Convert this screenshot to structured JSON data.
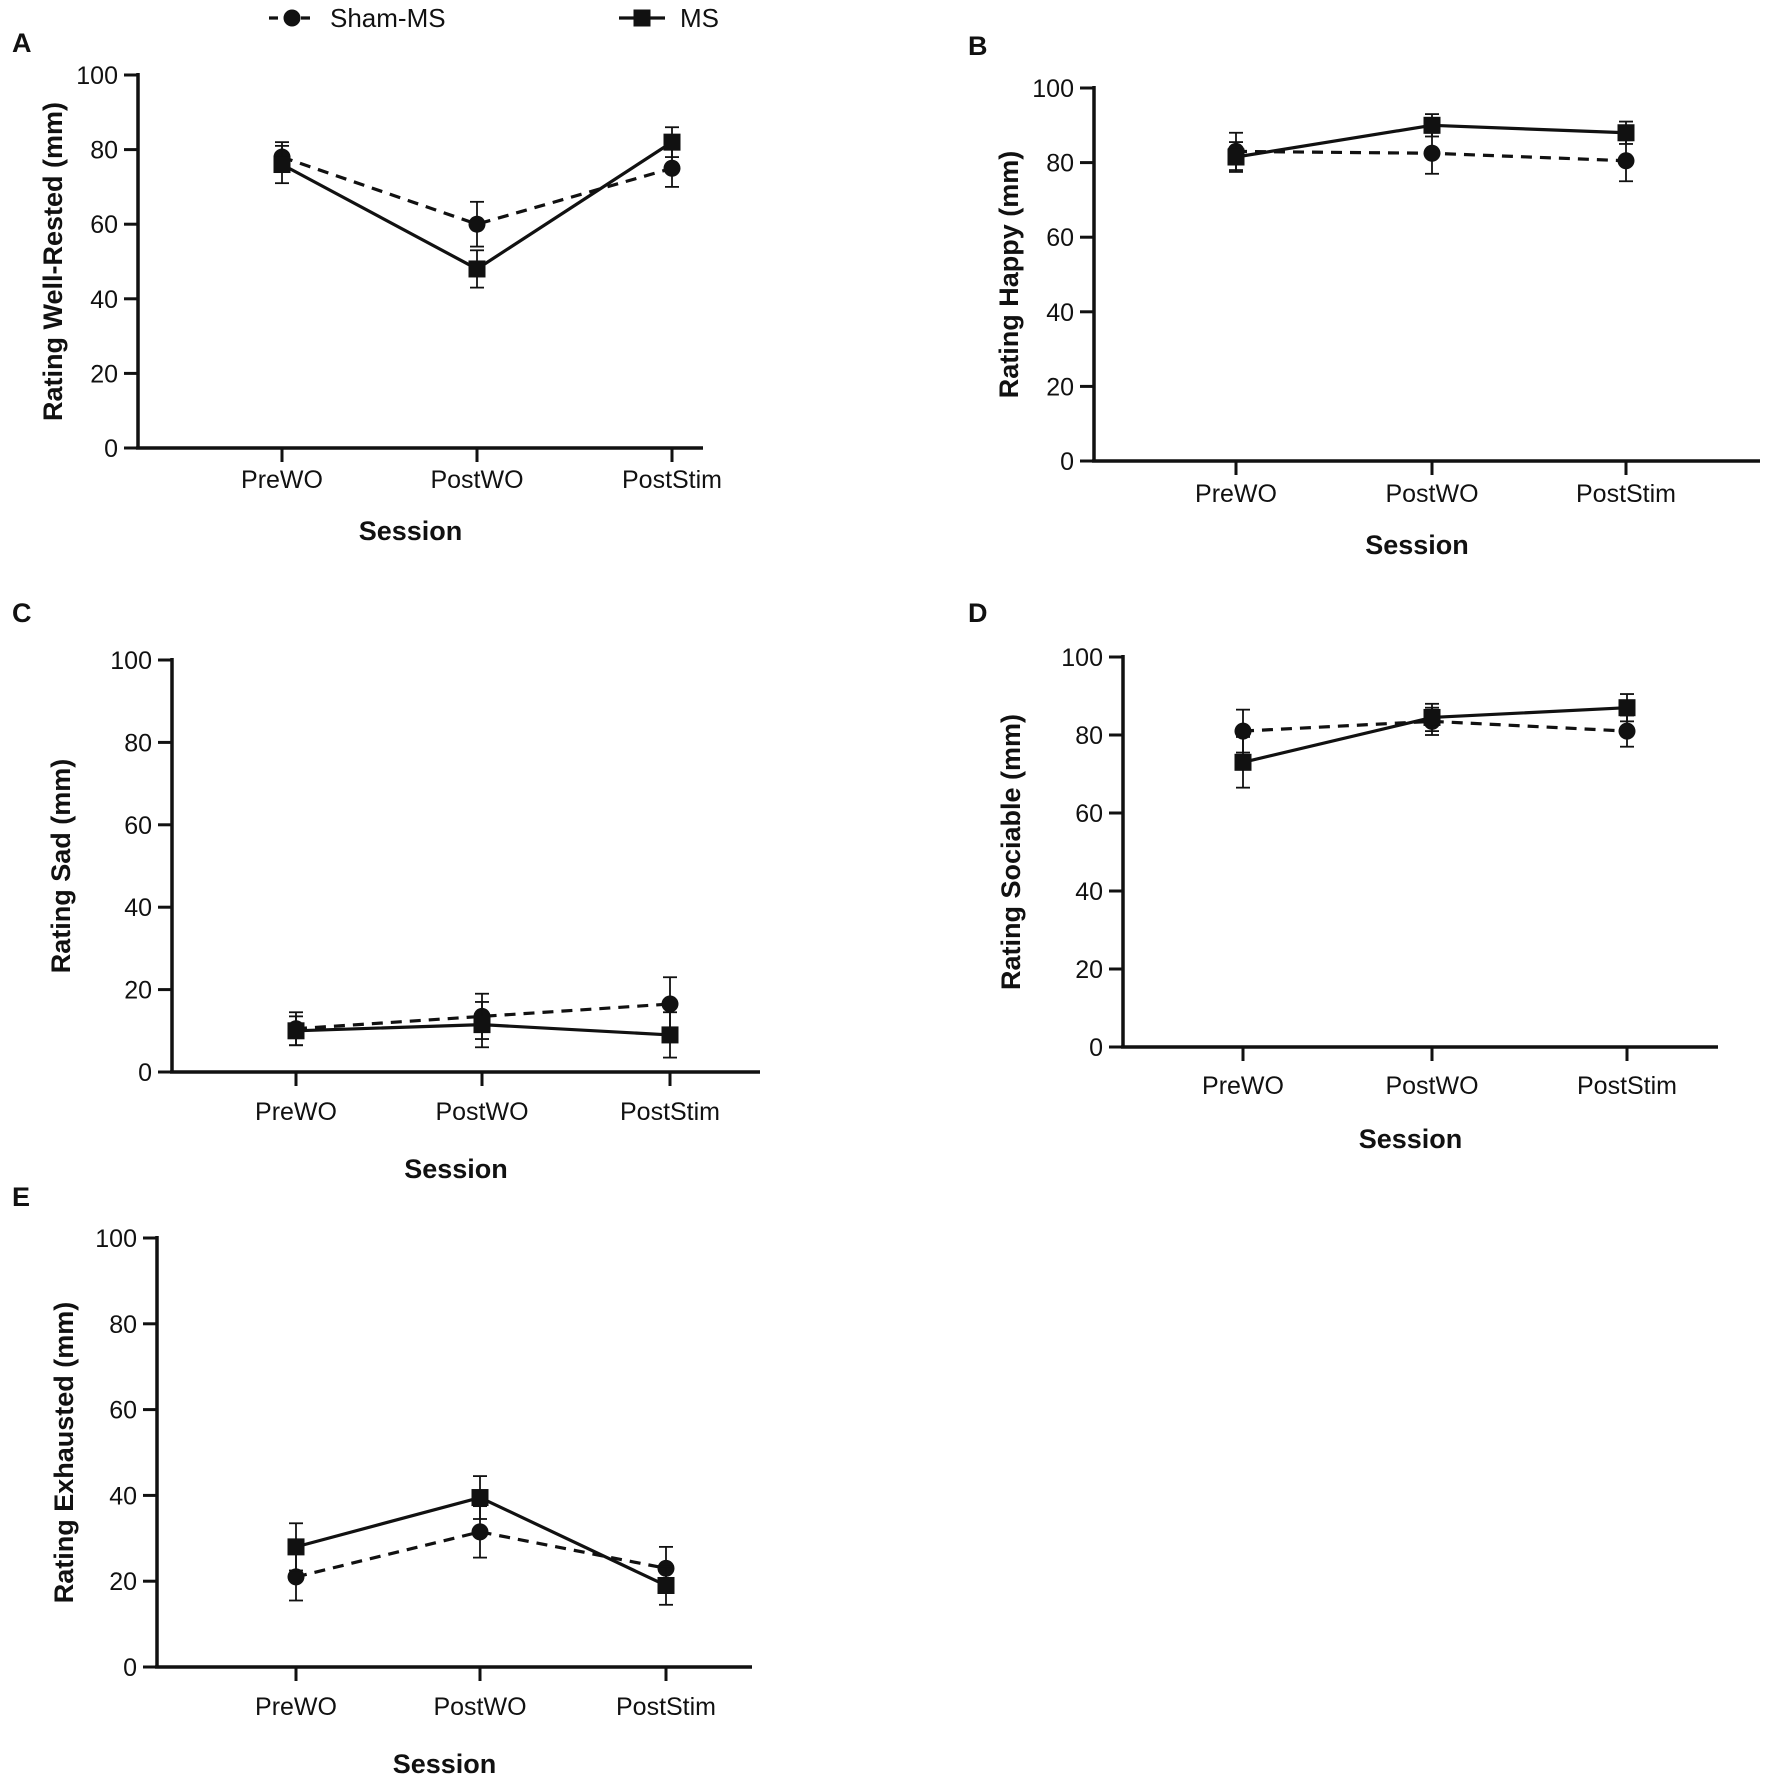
{
  "legend": [
    {
      "label": "Sham-MS",
      "marker": "circle",
      "line": "dashed"
    },
    {
      "label": "MS",
      "marker": "square",
      "line": "solid"
    }
  ],
  "colors": {
    "ink": "#111111",
    "background": "#ffffff"
  },
  "chart_data": [
    {
      "panel": "A",
      "type": "line",
      "categories": [
        "PreWO",
        "PostWO",
        "PostStim"
      ],
      "xlabel": "Session",
      "ylabel": "Rating Well-Rested (mm)",
      "ylim": [
        0,
        100
      ],
      "yticks": [
        0,
        20,
        40,
        60,
        80,
        100
      ],
      "series": [
        {
          "name": "Sham-MS",
          "values": [
            78,
            60,
            75
          ],
          "errors": [
            4,
            6,
            5
          ]
        },
        {
          "name": "MS",
          "values": [
            76,
            48,
            82
          ],
          "errors": [
            5,
            5,
            4
          ]
        }
      ]
    },
    {
      "panel": "B",
      "type": "line",
      "categories": [
        "PreWO",
        "PostWO",
        "PostStim"
      ],
      "xlabel": "Session",
      "ylabel": "Rating Happy (mm)",
      "ylim": [
        0,
        100
      ],
      "yticks": [
        0,
        20,
        40,
        60,
        80,
        100
      ],
      "series": [
        {
          "name": "Sham-MS",
          "values": [
            83,
            82.5,
            80.5
          ],
          "errors": [
            5,
            5.5,
            5.5
          ]
        },
        {
          "name": "MS",
          "values": [
            81.5,
            90,
            88
          ],
          "errors": [
            4,
            3,
            3
          ]
        }
      ]
    },
    {
      "panel": "C",
      "type": "line",
      "categories": [
        "PreWO",
        "PostWO",
        "PostStim"
      ],
      "xlabel": "Session",
      "ylabel": "Rating Sad (mm)",
      "ylim": [
        0,
        100
      ],
      "yticks": [
        0,
        20,
        40,
        60,
        80,
        100
      ],
      "series": [
        {
          "name": "Sham-MS",
          "values": [
            10.5,
            13.5,
            16.5
          ],
          "errors": [
            4,
            5.5,
            6.5
          ]
        },
        {
          "name": "MS",
          "values": [
            10,
            11.5,
            9
          ],
          "errors": [
            3.5,
            5.5,
            5.5
          ]
        }
      ]
    },
    {
      "panel": "D",
      "type": "line",
      "categories": [
        "PreWO",
        "PostWO",
        "PostStim"
      ],
      "xlabel": "Session",
      "ylabel": "Rating Sociable (mm)",
      "ylim": [
        0,
        100
      ],
      "yticks": [
        0,
        20,
        40,
        60,
        80,
        100
      ],
      "series": [
        {
          "name": "Sham-MS",
          "values": [
            81,
            83.5,
            81
          ],
          "errors": [
            5.5,
            3.5,
            4
          ]
        },
        {
          "name": "MS",
          "values": [
            73,
            84.5,
            87
          ],
          "errors": [
            6.5,
            3.5,
            3.5
          ]
        }
      ]
    },
    {
      "panel": "E",
      "type": "line",
      "categories": [
        "PreWO",
        "PostWO",
        "PostStim"
      ],
      "xlabel": "Session",
      "ylabel": "Rating Exhausted (mm)",
      "ylim": [
        0,
        100
      ],
      "yticks": [
        0,
        20,
        40,
        60,
        80,
        100
      ],
      "series": [
        {
          "name": "Sham-MS",
          "values": [
            21,
            31.5,
            23
          ],
          "errors": [
            5.5,
            6,
            5
          ]
        },
        {
          "name": "MS",
          "values": [
            28,
            39.5,
            19
          ],
          "errors": [
            5.5,
            5,
            4.5
          ]
        }
      ]
    }
  ]
}
